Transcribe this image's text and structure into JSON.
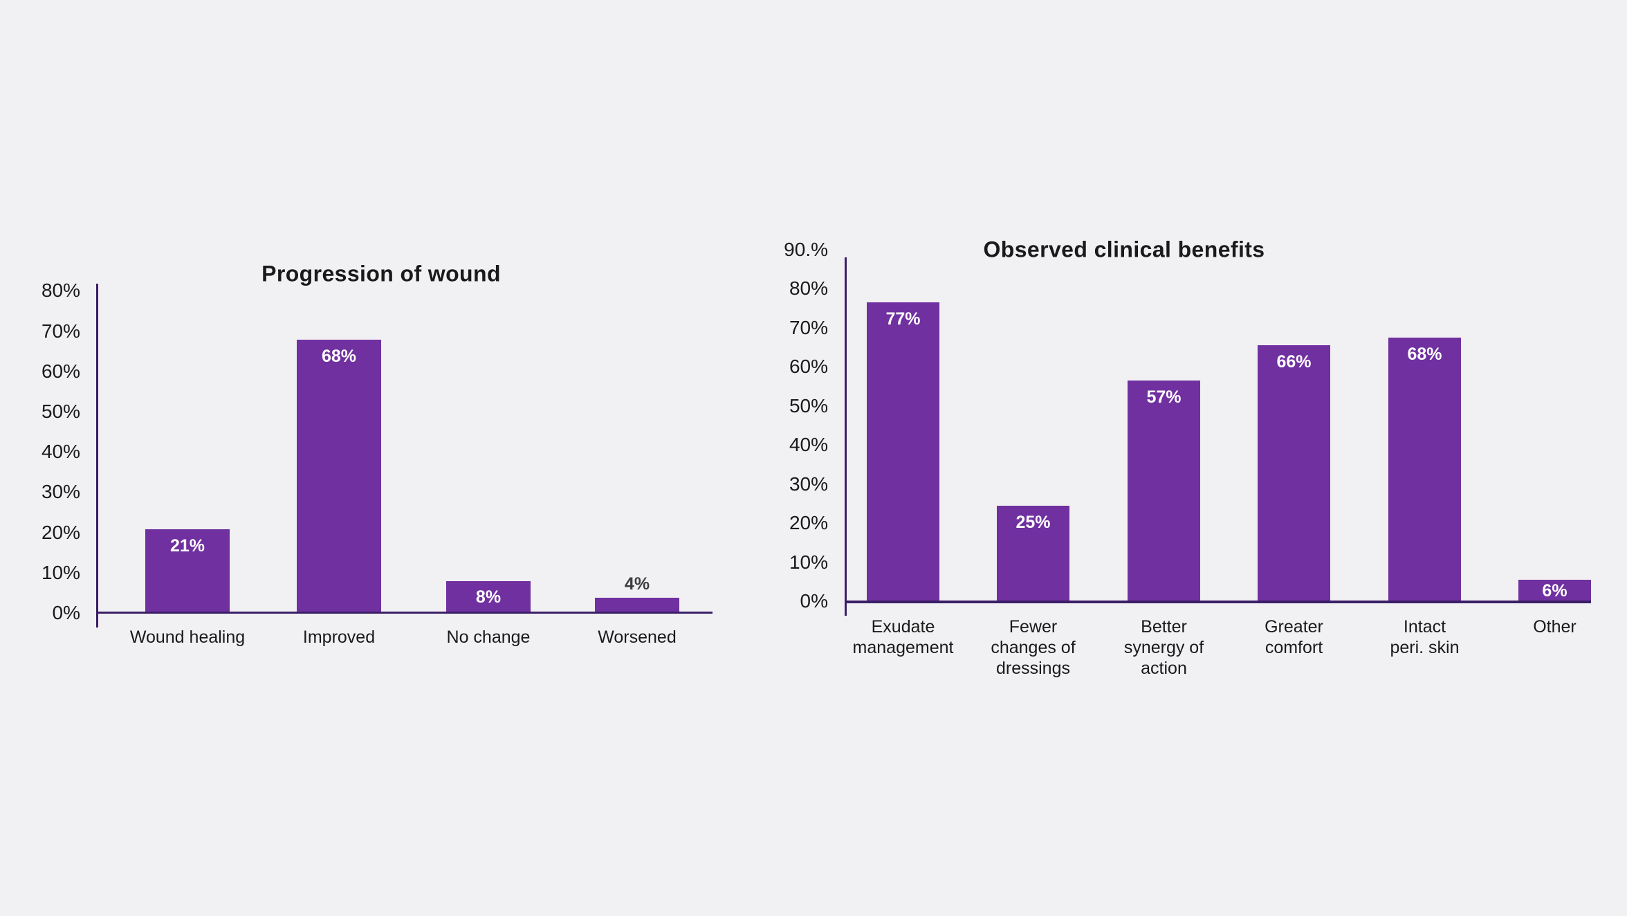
{
  "page": {
    "background": "#f1f0f3"
  },
  "colors": {
    "bar": "#7030a0",
    "axis": "#3a1f66",
    "text": "#1a1a1a",
    "bar_label_inside": "#ffffff",
    "bar_label_outside": "#3d3d3d"
  },
  "chart_data": [
    {
      "type": "bar",
      "title": "Progression of wound",
      "categories": [
        "Wound healing",
        "Improved",
        "No change",
        "Worsened"
      ],
      "values": [
        21,
        68,
        8,
        4
      ],
      "bar_labels": [
        "21%",
        "68%",
        "8%",
        "4%"
      ],
      "bar_label_placement": [
        "inside",
        "inside",
        "inside",
        "outside"
      ],
      "ylim": [
        0,
        80
      ],
      "ytick_values": [
        0,
        10,
        20,
        30,
        40,
        50,
        60,
        70,
        80
      ],
      "ytick_labels": [
        "0%",
        "10%",
        "20%",
        "30%",
        "40%",
        "50%",
        "60%",
        "70%",
        "80%"
      ],
      "xlabel": "",
      "ylabel": "",
      "grid": false,
      "legend": false
    },
    {
      "type": "bar",
      "title": "Observed clinical benefits",
      "categories": [
        "Exudate\nmanagement",
        "Fewer\nchanges of\ndressings",
        "Better\nsynergy of\naction",
        "Greater\ncomfort",
        "Intact\nperi. skin",
        "Other"
      ],
      "values": [
        77,
        25,
        57,
        66,
        68,
        6
      ],
      "bar_labels": [
        "77%",
        "25%",
        "57%",
        "66%",
        "68%",
        "6%"
      ],
      "bar_label_placement": [
        "inside",
        "inside",
        "inside",
        "inside",
        "inside",
        "inside"
      ],
      "ylim": [
        0,
        90
      ],
      "ytick_values": [
        0,
        10,
        20,
        30,
        40,
        50,
        60,
        70,
        80,
        90
      ],
      "ytick_labels": [
        "0%",
        "10%",
        "20%",
        "30%",
        "40%",
        "50%",
        "60%",
        "70%",
        "80%",
        "90.%"
      ],
      "xlabel": "",
      "ylabel": "",
      "grid": false,
      "legend": false
    }
  ]
}
